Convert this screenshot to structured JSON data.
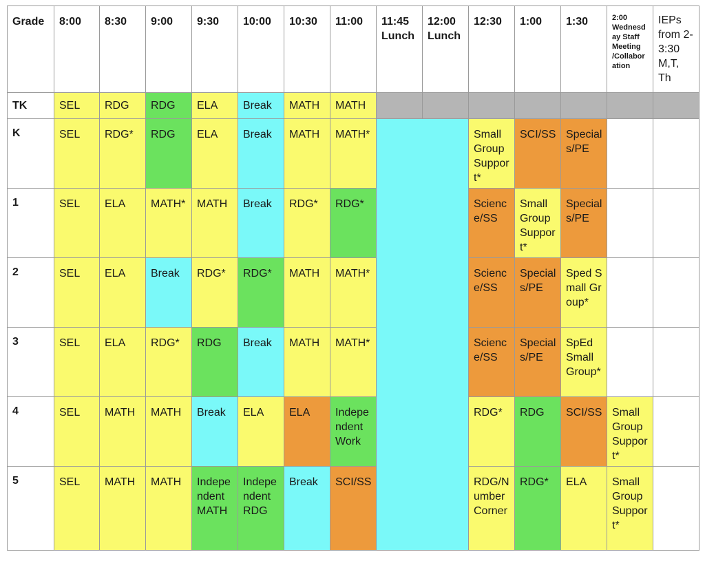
{
  "colors": {
    "yellow": "#fafa6e",
    "green": "#6be25e",
    "cyan": "#7af9f9",
    "orange": "#ed9a3c",
    "gray": "#b5b5b5",
    "white": "#ffffff"
  },
  "headers": [
    "Grade",
    "8:00",
    "8:30",
    "9:00",
    "9:30",
    "10:00",
    "10:30",
    "11:00",
    "11:45 Lunch",
    "12:00 Lunch",
    "12:30",
    "1:00",
    "1:30",
    "2:00 Wednesday Staff Meeting /Collaboration",
    "IEPs from 2-3:30 M,T, Th"
  ],
  "rows": [
    {
      "grade": "TK",
      "cells": [
        {
          "text": "SEL",
          "color": "yellow"
        },
        {
          "text": "RDG",
          "color": "yellow"
        },
        {
          "text": "RDG",
          "color": "green"
        },
        {
          "text": "ELA",
          "color": "yellow"
        },
        {
          "text": "Break",
          "color": "cyan"
        },
        {
          "text": "MATH",
          "color": "yellow"
        },
        {
          "text": "MATH",
          "color": "yellow"
        }
      ],
      "after_lunch": [
        {
          "text": "",
          "color": "gray"
        },
        {
          "text": "",
          "color": "gray"
        },
        {
          "text": "",
          "color": "gray"
        },
        {
          "text": "",
          "color": "gray"
        },
        {
          "text": "",
          "color": "gray"
        }
      ]
    },
    {
      "grade": "K",
      "cells": [
        {
          "text": "SEL",
          "color": "yellow"
        },
        {
          "text": "RDG*",
          "color": "yellow"
        },
        {
          "text": "RDG",
          "color": "green"
        },
        {
          "text": "ELA",
          "color": "yellow"
        },
        {
          "text": "Break",
          "color": "cyan"
        },
        {
          "text": "MATH",
          "color": "yellow"
        },
        {
          "text": "MATH*",
          "color": "yellow"
        }
      ],
      "after_lunch": [
        {
          "text": "Small Group Support*",
          "color": "yellow"
        },
        {
          "text": "SCI/SS",
          "color": "orange"
        },
        {
          "text": "Specials/PE",
          "color": "orange"
        },
        {
          "text": "",
          "color": "white"
        },
        {
          "text": "",
          "color": "white"
        }
      ]
    },
    {
      "grade": "1",
      "cells": [
        {
          "text": "SEL",
          "color": "yellow"
        },
        {
          "text": "ELA",
          "color": "yellow"
        },
        {
          "text": "MATH*",
          "color": "yellow"
        },
        {
          "text": "MATH",
          "color": "yellow"
        },
        {
          "text": "Break",
          "color": "cyan"
        },
        {
          "text": "RDG*",
          "color": "yellow"
        },
        {
          "text": "RDG*",
          "color": "green"
        }
      ],
      "after_lunch": [
        {
          "text": "Science/SS",
          "color": "orange"
        },
        {
          "text": "Small Group Support*",
          "color": "yellow"
        },
        {
          "text": "Specials/PE",
          "color": "orange"
        },
        {
          "text": "",
          "color": "white"
        },
        {
          "text": "",
          "color": "white"
        }
      ]
    },
    {
      "grade": "2",
      "cells": [
        {
          "text": "SEL",
          "color": "yellow"
        },
        {
          "text": "ELA",
          "color": "yellow"
        },
        {
          "text": "Break",
          "color": "cyan"
        },
        {
          "text": "RDG*",
          "color": "yellow"
        },
        {
          "text": "RDG*",
          "color": "green"
        },
        {
          "text": "MATH",
          "color": "yellow"
        },
        {
          "text": "MATH*",
          "color": "yellow"
        }
      ],
      "after_lunch": [
        {
          "text": "Science/SS",
          "color": "orange"
        },
        {
          "text": "Specials/PE",
          "color": "orange"
        },
        {
          "text": "Sped Small Group*",
          "color": "yellow"
        },
        {
          "text": "",
          "color": "white"
        },
        {
          "text": "",
          "color": "white"
        }
      ]
    },
    {
      "grade": "3",
      "cells": [
        {
          "text": "SEL",
          "color": "yellow"
        },
        {
          "text": "ELA",
          "color": "yellow"
        },
        {
          "text": "RDG*",
          "color": "yellow"
        },
        {
          "text": "RDG",
          "color": "green"
        },
        {
          "text": "Break",
          "color": "cyan"
        },
        {
          "text": "MATH",
          "color": "yellow"
        },
        {
          "text": "MATH*",
          "color": "yellow"
        }
      ],
      "after_lunch": [
        {
          "text": "Science/SS",
          "color": "orange"
        },
        {
          "text": "Specials/PE",
          "color": "orange"
        },
        {
          "text": "SpEd Small Group*",
          "color": "yellow"
        },
        {
          "text": "",
          "color": "white"
        },
        {
          "text": "",
          "color": "white"
        }
      ]
    },
    {
      "grade": "4",
      "cells": [
        {
          "text": "SEL",
          "color": "yellow"
        },
        {
          "text": "MATH",
          "color": "yellow"
        },
        {
          "text": "MATH",
          "color": "yellow"
        },
        {
          "text": "Break",
          "color": "cyan"
        },
        {
          "text": "ELA",
          "color": "yellow"
        },
        {
          "text": "ELA",
          "color": "orange"
        },
        {
          "text": "Independent Work",
          "color": "green"
        }
      ],
      "after_lunch": [
        {
          "text": "RDG*",
          "color": "yellow"
        },
        {
          "text": "RDG",
          "color": "green"
        },
        {
          "text": "SCI/SS",
          "color": "orange"
        },
        {
          "text": "Small Group Support*",
          "color": "yellow"
        },
        {
          "text": "",
          "color": "white"
        }
      ]
    },
    {
      "grade": "5",
      "cells": [
        {
          "text": "SEL",
          "color": "yellow"
        },
        {
          "text": "MATH",
          "color": "yellow"
        },
        {
          "text": "MATH",
          "color": "yellow"
        },
        {
          "text": "Independent MATH",
          "color": "green"
        },
        {
          "text": "Independent RDG",
          "color": "green"
        },
        {
          "text": "Break",
          "color": "cyan"
        },
        {
          "text": "SCI/SS",
          "color": "orange"
        }
      ],
      "after_lunch": [
        {
          "text": "RDG/Number Corner",
          "color": "yellow"
        },
        {
          "text": "RDG*",
          "color": "green"
        },
        {
          "text": "ELA",
          "color": "yellow"
        },
        {
          "text": "Small Group Support*",
          "color": "yellow"
        },
        {
          "text": "",
          "color": "white"
        }
      ]
    }
  ]
}
